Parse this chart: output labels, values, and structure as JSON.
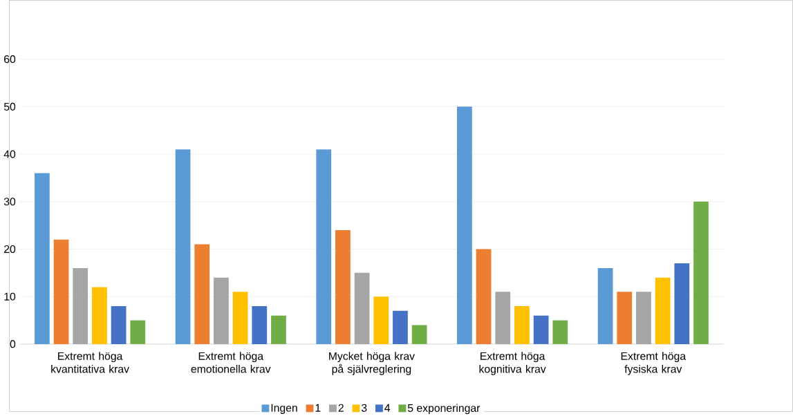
{
  "chart_data": {
    "type": "bar",
    "categories": [
      "Extremt höga kvantitativa krav",
      "Extremt höga emotionella krav",
      "Mycket höga krav på självreglering",
      "Extremt höga kognitiva krav",
      "Extremt höga fysiska krav"
    ],
    "series": [
      {
        "name": "Ingen",
        "color": "#5b9bd5",
        "values": [
          36,
          41,
          41,
          50,
          16
        ]
      },
      {
        "name": "1",
        "color": "#ed7d31",
        "values": [
          22,
          21,
          24,
          20,
          11
        ]
      },
      {
        "name": "2",
        "color": "#a5a5a5",
        "values": [
          16,
          14,
          15,
          11,
          11
        ]
      },
      {
        "name": "3",
        "color": "#ffc000",
        "values": [
          12,
          11,
          10,
          8,
          14
        ]
      },
      {
        "name": "4",
        "color": "#4472c4",
        "values": [
          8,
          8,
          7,
          6,
          17
        ]
      },
      {
        "name": "5 exponeringar",
        "color": "#70ad47",
        "values": [
          5,
          6,
          4,
          5,
          30
        ]
      }
    ],
    "ylim": [
      0,
      60
    ],
    "yticks": [
      0,
      10,
      20,
      30,
      40,
      50,
      60
    ],
    "grid": "y",
    "legend": "bottom"
  }
}
